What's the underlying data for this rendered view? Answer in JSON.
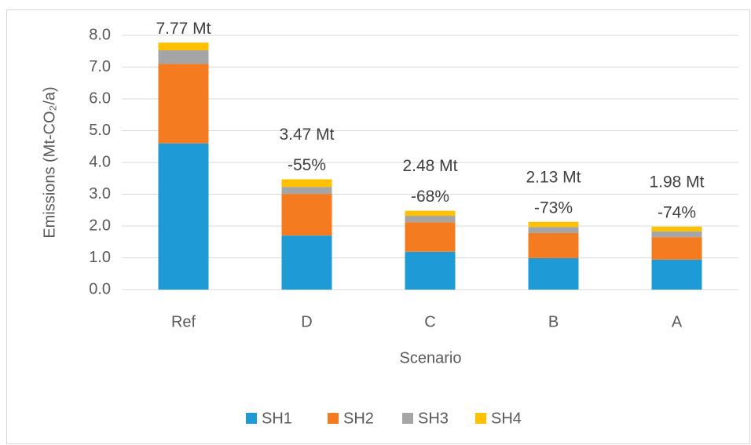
{
  "chart_data": {
    "type": "stacked_bar",
    "y_axis_label": "Emissions (Mt-CO₂/a)",
    "x_axis_label": "Scenario",
    "categories": [
      "Ref",
      "D",
      "C",
      "B",
      "A"
    ],
    "series": [
      {
        "name": "SH1",
        "color": "#1e9bd7",
        "values": [
          4.6,
          1.7,
          1.19,
          0.99,
          0.94
        ]
      },
      {
        "name": "SH2",
        "color": "#f47b20",
        "values": [
          2.5,
          1.31,
          0.93,
          0.79,
          0.71
        ]
      },
      {
        "name": "SH3",
        "color": "#a5a5a5",
        "values": [
          0.43,
          0.22,
          0.2,
          0.19,
          0.18
        ]
      },
      {
        "name": "SH4",
        "color": "#ffc000",
        "values": [
          0.24,
          0.24,
          0.16,
          0.16,
          0.15
        ]
      }
    ],
    "annotations": [
      [
        "7.77 Mt"
      ],
      [
        "3.47 Mt",
        "-55%"
      ],
      [
        "2.48 Mt",
        "-68%"
      ],
      [
        "2.13 Mt",
        "-73%"
      ],
      [
        "1.98 Mt",
        "-74%"
      ]
    ],
    "ylim": [
      0,
      8
    ],
    "yticks": [
      {
        "value": 0,
        "label": "0.0"
      },
      {
        "value": 1,
        "label": "1.0"
      },
      {
        "value": 2,
        "label": "2.0"
      },
      {
        "value": 3,
        "label": "3.0"
      },
      {
        "value": 4,
        "label": "4.0"
      },
      {
        "value": 5,
        "label": "5.0"
      },
      {
        "value": 6,
        "label": "6.0"
      },
      {
        "value": 7,
        "label": "7.0"
      },
      {
        "value": 8,
        "label": "8.0"
      }
    ],
    "grid": true,
    "legend_position": "bottom"
  }
}
